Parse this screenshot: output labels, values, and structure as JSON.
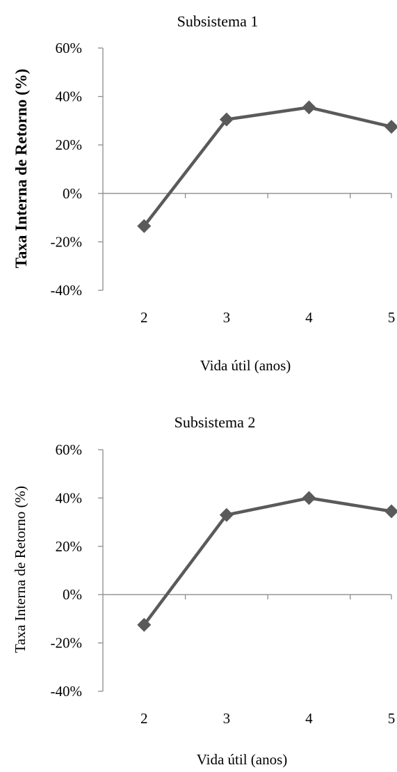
{
  "chart_data": [
    {
      "type": "line",
      "title": "Subsistema 1",
      "xlabel": "Vida útil (anos)",
      "ylabel": "Taxa Interna de Retorno (%)",
      "ylabel_bold": true,
      "categories": [
        "2",
        "3",
        "4",
        "5"
      ],
      "x": [
        2,
        3,
        4,
        5
      ],
      "series": [
        {
          "values": [
            -13.5,
            30.5,
            35.5,
            27.5
          ]
        }
      ],
      "ylim": [
        -40,
        60
      ],
      "yticks": [
        -40,
        -20,
        0,
        20,
        40,
        60
      ],
      "ytick_labels": [
        "-40%",
        "-20%",
        "0%",
        "20%",
        "40%",
        "60%"
      ],
      "series_color": "#5a5a5a",
      "marker": "diamond",
      "grid": false,
      "legend": "none"
    },
    {
      "type": "line",
      "title": "Subsistema 2",
      "xlabel": "Vida útil (anos)",
      "ylabel": "Taxa Interna de Retorno (%)",
      "ylabel_bold": false,
      "categories": [
        "2",
        "3",
        "4",
        "5"
      ],
      "x": [
        2,
        3,
        4,
        5
      ],
      "series": [
        {
          "values": [
            -12.5,
            33,
            40,
            34.5
          ]
        }
      ],
      "ylim": [
        -40,
        60
      ],
      "yticks": [
        -40,
        -20,
        0,
        20,
        40,
        60
      ],
      "ytick_labels": [
        "-40%",
        "-20%",
        "0%",
        "20%",
        "40%",
        "60%"
      ],
      "series_color": "#5a5a5a",
      "marker": "diamond",
      "grid": false,
      "legend": "none"
    }
  ]
}
